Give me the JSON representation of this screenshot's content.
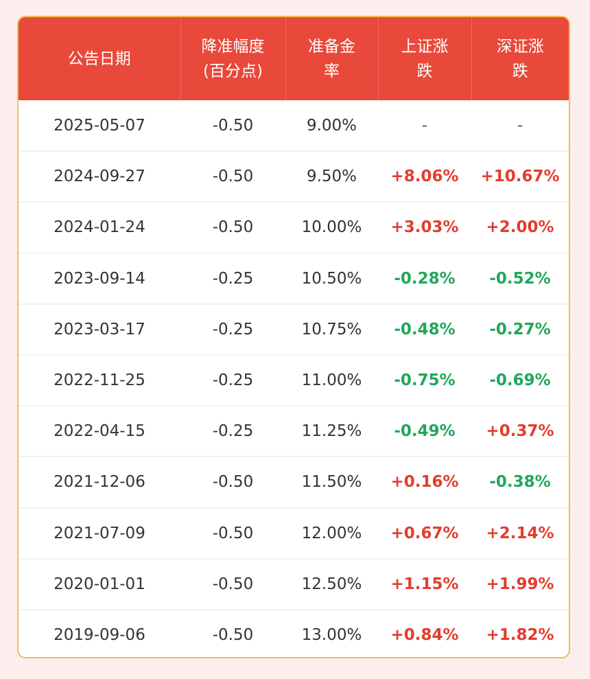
{
  "colors": {
    "page_background": "#fdeeee",
    "header_background": "#e8493a",
    "border": "#f2c04a",
    "up": "#e23d2e",
    "down": "#1fa85a"
  },
  "table": {
    "headers": [
      {
        "lines": [
          "公告日期"
        ]
      },
      {
        "lines": [
          "降准幅度",
          "(百分点)"
        ]
      },
      {
        "lines": [
          "准备金",
          "率"
        ]
      },
      {
        "lines": [
          "上证涨",
          "跌"
        ]
      },
      {
        "lines": [
          "深证涨",
          "跌"
        ]
      }
    ],
    "rows": [
      {
        "date": "2025-05-07",
        "cut": "-0.50",
        "rate": "9.00%",
        "sh": "-",
        "sz": "-",
        "sh_dir": "flat",
        "sz_dir": "flat"
      },
      {
        "date": "2024-09-27",
        "cut": "-0.50",
        "rate": "9.50%",
        "sh": "+8.06%",
        "sz": "+10.67%",
        "sh_dir": "up",
        "sz_dir": "up"
      },
      {
        "date": "2024-01-24",
        "cut": "-0.50",
        "rate": "10.00%",
        "sh": "+3.03%",
        "sz": "+2.00%",
        "sh_dir": "up",
        "sz_dir": "up"
      },
      {
        "date": "2023-09-14",
        "cut": "-0.25",
        "rate": "10.50%",
        "sh": "-0.28%",
        "sz": "-0.52%",
        "sh_dir": "down",
        "sz_dir": "down"
      },
      {
        "date": "2023-03-17",
        "cut": "-0.25",
        "rate": "10.75%",
        "sh": "-0.48%",
        "sz": "-0.27%",
        "sh_dir": "down",
        "sz_dir": "down"
      },
      {
        "date": "2022-11-25",
        "cut": "-0.25",
        "rate": "11.00%",
        "sh": "-0.75%",
        "sz": "-0.69%",
        "sh_dir": "down",
        "sz_dir": "down"
      },
      {
        "date": "2022-04-15",
        "cut": "-0.25",
        "rate": "11.25%",
        "sh": "-0.49%",
        "sz": "+0.37%",
        "sh_dir": "down",
        "sz_dir": "up"
      },
      {
        "date": "2021-12-06",
        "cut": "-0.50",
        "rate": "11.50%",
        "sh": "+0.16%",
        "sz": "-0.38%",
        "sh_dir": "up",
        "sz_dir": "down"
      },
      {
        "date": "2021-07-09",
        "cut": "-0.50",
        "rate": "12.00%",
        "sh": "+0.67%",
        "sz": "+2.14%",
        "sh_dir": "up",
        "sz_dir": "up"
      },
      {
        "date": "2020-01-01",
        "cut": "-0.50",
        "rate": "12.50%",
        "sh": "+1.15%",
        "sz": "+1.99%",
        "sh_dir": "up",
        "sz_dir": "up"
      },
      {
        "date": "2019-09-06",
        "cut": "-0.50",
        "rate": "13.00%",
        "sh": "+0.84%",
        "sz": "+1.82%",
        "sh_dir": "up",
        "sz_dir": "up"
      }
    ]
  }
}
